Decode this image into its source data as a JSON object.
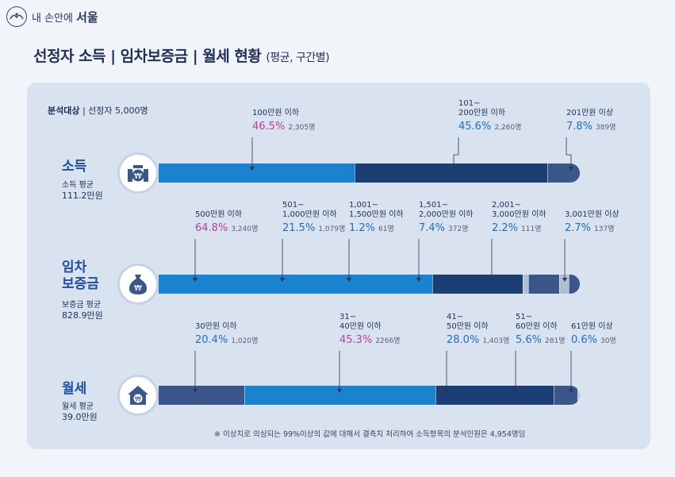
{
  "brand": {
    "prefix": "내 손안에",
    "name": "서울"
  },
  "title": {
    "main": "선정자 소득 | 임차보증금 | 월세 현황",
    "sub": "(평균, 구간별)"
  },
  "target": {
    "label": "분석대상",
    "value": "| 선정자 5,000명"
  },
  "colors": {
    "navy": "#1b3f74",
    "blue": "#1b82cf",
    "slate": "#3b5689",
    "light": "#aebed3",
    "pink": "#b4429a"
  },
  "note": "※ 이상치로 의심되는 99%이상의 값에 대해서 결측치 처리하여 소득항목의 분석인원은 4,954명임",
  "chart_data": [
    {
      "type": "bar",
      "title": "소득",
      "avg_label": "소득 평균",
      "avg_value": "111.2만원",
      "icon": "coins-icon",
      "segments": [
        {
          "label": "100만원 이하",
          "pct_text": "46.5%",
          "value": 46.5,
          "count": "2,305명",
          "color": "#1b82cf",
          "accent": "pink"
        },
        {
          "label": "101~\n200만원 이하",
          "pct_text": "45.6%",
          "value": 45.6,
          "count": "2,260명",
          "color": "#1b3f74",
          "accent": "blue"
        },
        {
          "label": "201만원 이상",
          "pct_text": "7.8%",
          "value": 7.8,
          "count": "389명",
          "color": "#3b5689",
          "accent": "blue"
        }
      ]
    },
    {
      "type": "bar",
      "title": "임차\n보증금",
      "avg_label": "보증금 평균",
      "avg_value": "828.9만원",
      "icon": "money-bag-icon",
      "segments": [
        {
          "label": "500만원 이하",
          "pct_text": "64.8%",
          "value": 64.8,
          "count": "3,240명",
          "color": "#1b82cf",
          "accent": "pink"
        },
        {
          "label": "501~\n1,000만원 이하",
          "pct_text": "21.5%",
          "value": 21.5,
          "count": "1,079명",
          "color": "#1b3f74",
          "accent": "blue"
        },
        {
          "label": "1,001~\n1,500만원 이하",
          "pct_text": "1.2%",
          "value": 1.2,
          "count": "61명",
          "color": "#aebed3",
          "accent": "blue"
        },
        {
          "label": "1,501~\n2,000만원 이하",
          "pct_text": "7.4%",
          "value": 7.4,
          "count": "372명",
          "color": "#3b5689",
          "accent": "blue"
        },
        {
          "label": "2,001~\n3,000만원 이하",
          "pct_text": "2.2%",
          "value": 2.2,
          "count": "111명",
          "color": "#aebed3",
          "accent": "blue"
        },
        {
          "label": "3,001만원 이상",
          "pct_text": "2.7%",
          "value": 2.7,
          "count": "137명",
          "color": "#3b5689",
          "accent": "blue"
        }
      ]
    },
    {
      "type": "bar",
      "title": "월세",
      "avg_label": "월세 평균",
      "avg_value": "39.0만원",
      "icon": "house-icon",
      "segments": [
        {
          "label": "30만원 이하",
          "pct_text": "20.4%",
          "value": 20.4,
          "count": "1,020명",
          "color": "#3b5689",
          "accent": "blue"
        },
        {
          "label": "31~\n40만원 이하",
          "pct_text": "45.3%",
          "value": 45.3,
          "count": "2266명",
          "color": "#1b82cf",
          "accent": "pink"
        },
        {
          "label": "41~\n50만원 이하",
          "pct_text": "28.0%",
          "value": 28.0,
          "count": "1,403명",
          "color": "#1b3f74",
          "accent": "blue"
        },
        {
          "label": "51~\n60만원 이하",
          "pct_text": "5.6%",
          "value": 5.6,
          "count": "281명",
          "color": "#3b5689",
          "accent": "blue"
        },
        {
          "label": "61만원 이상",
          "pct_text": "0.6%",
          "value": 0.6,
          "count": "30명",
          "color": "#aebed3",
          "accent": "blue"
        }
      ]
    }
  ]
}
